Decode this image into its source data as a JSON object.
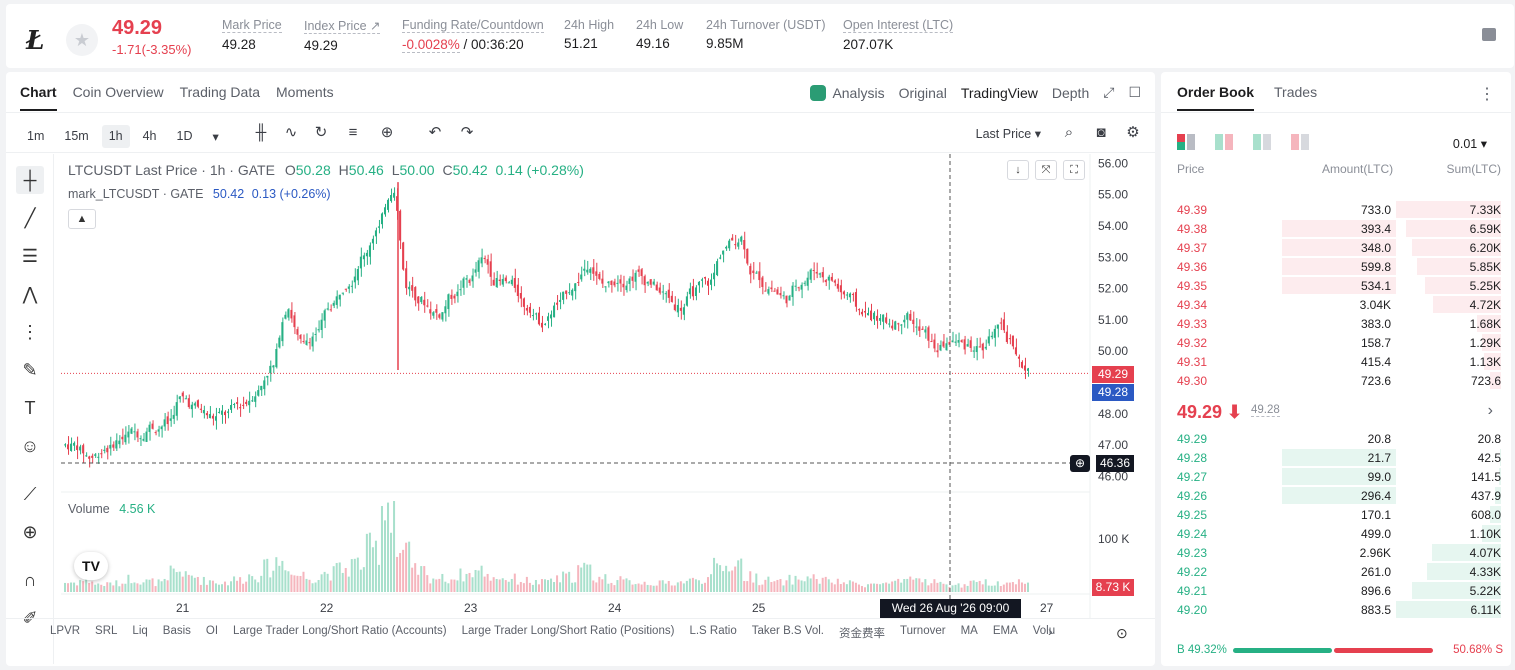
{
  "ticker": {
    "last_price": "49.29",
    "change": "-1.71(-3.35%)",
    "stats": [
      {
        "label": "Mark Price",
        "value": "49.28"
      },
      {
        "label": "Index Price ↗",
        "value": "49.29"
      },
      {
        "label": "Funding Rate/Countdown",
        "value_rate": "-0.0028%",
        "value_countdown": " / 00:36:20"
      },
      {
        "label": "24h High",
        "value": "51.21"
      },
      {
        "label": "24h Low",
        "value": "49.16"
      },
      {
        "label": "24h Turnover (USDT)",
        "value": "9.85M"
      },
      {
        "label": "Open Interest (LTC)",
        "value": "207.07K"
      }
    ]
  },
  "chart_tabs": [
    "Chart",
    "Coin Overview",
    "Trading Data",
    "Moments"
  ],
  "view_tabs": {
    "analysis": "Analysis",
    "original": "Original",
    "tradingview": "TradingView",
    "depth": "Depth"
  },
  "intervals": [
    "1m",
    "15m",
    "1h",
    "4h",
    "1D"
  ],
  "price_type": "Last Price",
  "legend": {
    "symbol": "LTCUSDT Last Price · 1h · GATE",
    "o_label": "O",
    "o": "50.28",
    "h_label": "H",
    "h": "50.46",
    "l_label": "L",
    "l": "50.00",
    "c_label": "C",
    "c": "50.42",
    "chg": "0.14 (+0.28%)",
    "mark_symbol": "mark_LTCUSDT · GATE",
    "mark_value": "50.42",
    "mark_chg": "0.13 (+0.26%)",
    "volume_label": "Volume",
    "volume_value": "4.56 K"
  },
  "chart_data": {
    "type": "candlestick",
    "x_ticks": [
      "21",
      "22",
      "23",
      "24",
      "25",
      "27"
    ],
    "y_ticks": [
      "56.00",
      "55.00",
      "54.00",
      "53.00",
      "52.00",
      "51.00",
      "50.00",
      "48.00",
      "47.00",
      "46.00"
    ],
    "ylim": [
      45.5,
      56.3
    ],
    "volume_tick": "100 K",
    "price_tags": {
      "last": "49.29",
      "mark": "49.28",
      "crosshair": "46.36",
      "volume": "8.73 K"
    },
    "crosshair_time": "Wed 26 Aug '26   09:00",
    "close_path": [
      47.0,
      46.6,
      46.9,
      47.2,
      47.4,
      47.6,
      47.7,
      48.5,
      48.2,
      47.9,
      48.0,
      48.3,
      48.7,
      49.5,
      51.4,
      50.2,
      50.6,
      51.5,
      52.2,
      53.0,
      53.9,
      55.2,
      52.0,
      51.6,
      51.2,
      51.8,
      52.3,
      52.9,
      52.2,
      52.1,
      51.4,
      50.9,
      51.5,
      52.1,
      52.8,
      52.1,
      52.3,
      52.4,
      52.2,
      51.8,
      51.4,
      51.9,
      52.2,
      53.3,
      53.6,
      52.4,
      52.0,
      51.7,
      52.2,
      52.6,
      52.3,
      51.8,
      51.3,
      51.1,
      50.9,
      51.1,
      50.6,
      50.1,
      50.3,
      50.2,
      50.1,
      50.7,
      50.3,
      49.3
    ],
    "volume_path": [
      10,
      12,
      8,
      9,
      14,
      11,
      10,
      22,
      16,
      12,
      10,
      13,
      17,
      25,
      32,
      18,
      15,
      20,
      24,
      30,
      45,
      95,
      40,
      22,
      15,
      14,
      18,
      22,
      16,
      14,
      12,
      10,
      13,
      16,
      24,
      15,
      12,
      11,
      10,
      9,
      10,
      12,
      14,
      26,
      30,
      16,
      12,
      10,
      13,
      15,
      12,
      10,
      9,
      8,
      9,
      10,
      14,
      11,
      8,
      7,
      9,
      10,
      9,
      12
    ]
  },
  "indicators": [
    "LPVR",
    "SRL",
    "Liq",
    "Basis",
    "OI",
    "Large Trader Long/Short Ratio (Accounts)",
    "Large Trader Long/Short Ratio (Positions)",
    "L.S Ratio",
    "Taker B.S Vol.",
    "资金费率",
    "Turnover",
    "MA",
    "EMA",
    "Volu"
  ],
  "orderbook": {
    "tabs": [
      "Order Book",
      "Trades"
    ],
    "precision": "0.01 ▾",
    "headers": {
      "price": "Price",
      "amount": "Amount(LTC)",
      "sum": "Sum(LTC)"
    },
    "asks": [
      {
        "price": "49.39",
        "amount": "733.0",
        "sum": "7.33K",
        "a": 0,
        "s": 1.0
      },
      {
        "price": "49.38",
        "amount": "393.4",
        "sum": "6.59K",
        "a": 0.38,
        "s": 0.9
      },
      {
        "price": "49.37",
        "amount": "348.0",
        "sum": "6.20K",
        "a": 0.38,
        "s": 0.85
      },
      {
        "price": "49.36",
        "amount": "599.8",
        "sum": "5.85K",
        "a": 0.38,
        "s": 0.8
      },
      {
        "price": "49.35",
        "amount": "534.1",
        "sum": "5.25K",
        "a": 0.38,
        "s": 0.72
      },
      {
        "price": "49.34",
        "amount": "3.04K",
        "sum": "4.72K",
        "a": 0,
        "s": 0.65
      },
      {
        "price": "49.33",
        "amount": "383.0",
        "sum": "1.68K",
        "a": 0,
        "s": 0.23
      },
      {
        "price": "49.32",
        "amount": "158.7",
        "sum": "1.29K",
        "a": 0,
        "s": 0.18
      },
      {
        "price": "49.31",
        "amount": "415.4",
        "sum": "1.13K",
        "a": 0,
        "s": 0.16
      },
      {
        "price": "49.30",
        "amount": "723.6",
        "sum": "723.6",
        "a": 0,
        "s": 0.1
      }
    ],
    "mid_price": "49.29 ⬇",
    "mid_mark": "49.28",
    "bids": [
      {
        "price": "49.29",
        "amount": "20.8",
        "sum": "20.8",
        "a": 0,
        "s": 0.0
      },
      {
        "price": "49.28",
        "amount": "21.7",
        "sum": "42.5",
        "a": 0.38,
        "s": 0.01
      },
      {
        "price": "49.27",
        "amount": "99.0",
        "sum": "141.5",
        "a": 0.38,
        "s": 0.02
      },
      {
        "price": "49.26",
        "amount": "296.4",
        "sum": "437.9",
        "a": 0.38,
        "s": 0.06
      },
      {
        "price": "49.25",
        "amount": "170.1",
        "sum": "608.0",
        "a": 0,
        "s": 0.1
      },
      {
        "price": "49.24",
        "amount": "499.0",
        "sum": "1.10K",
        "a": 0,
        "s": 0.18
      },
      {
        "price": "49.23",
        "amount": "2.96K",
        "sum": "4.07K",
        "a": 0,
        "s": 0.66
      },
      {
        "price": "49.22",
        "amount": "261.0",
        "sum": "4.33K",
        "a": 0,
        "s": 0.7
      },
      {
        "price": "49.21",
        "amount": "896.6",
        "sum": "5.22K",
        "a": 0,
        "s": 0.85
      },
      {
        "price": "49.20",
        "amount": "883.5",
        "sum": "6.11K",
        "a": 0,
        "s": 1.0
      }
    ],
    "buy_ratio": "B 49.32%",
    "sell_ratio": "50.68% S",
    "buy_fraction": 0.4932
  },
  "colors": {
    "up": "#26b084",
    "down": "#e5404f",
    "mark": "#2b59c3"
  }
}
